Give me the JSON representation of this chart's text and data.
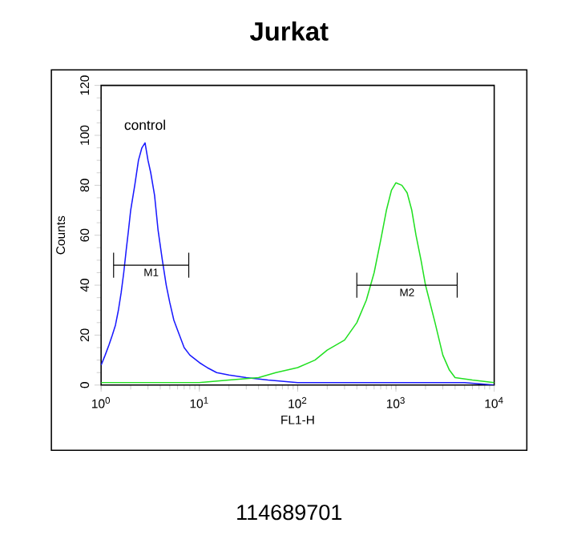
{
  "chart_data": {
    "type": "line",
    "title": "Jurkat",
    "xlabel": "FL1-H",
    "ylabel": "Counts",
    "log": "x",
    "xlim": [
      1,
      10000
    ],
    "xticks": [
      {
        "value": 1,
        "label": "10$^{0}$"
      },
      {
        "value": 10,
        "label": "10$^{1}$"
      },
      {
        "value": 100,
        "label": "10$^{2}$"
      },
      {
        "value": 1000,
        "label": "10$^{3}$"
      },
      {
        "value": 10000,
        "label": "10$^{4}$"
      }
    ],
    "ylim": [
      0,
      120
    ],
    "yticks": [
      0,
      20,
      40,
      60,
      80,
      100,
      120
    ],
    "series": [
      {
        "name": "control",
        "color": "#1a1aff",
        "x": [
          1.0,
          1.1,
          1.2,
          1.3,
          1.4,
          1.5,
          1.6,
          1.7,
          1.8,
          1.9,
          2.0,
          2.2,
          2.4,
          2.6,
          2.8,
          3.0,
          3.2,
          3.5,
          3.8,
          4.2,
          4.6,
          5.0,
          5.5,
          6,
          7,
          8,
          10,
          12,
          15,
          20,
          30,
          50,
          100,
          200,
          1000,
          5000,
          10000
        ],
        "values": [
          8,
          12,
          16,
          20,
          24,
          30,
          37,
          45,
          54,
          62,
          70,
          80,
          90,
          95,
          97,
          90,
          85,
          76,
          62,
          50,
          40,
          33,
          26,
          22,
          15,
          12,
          9,
          7,
          5,
          4,
          3,
          2,
          1,
          1,
          1,
          1,
          0
        ]
      },
      {
        "color": "#22e022",
        "x": [
          1,
          10,
          20,
          40,
          60,
          100,
          150,
          200,
          300,
          400,
          500,
          600,
          700,
          800,
          900,
          1000,
          1150,
          1300,
          1450,
          1600,
          1800,
          2000,
          2500,
          3000,
          3500,
          4000,
          6000,
          10000
        ],
        "values": [
          1,
          1,
          2,
          3,
          5,
          7,
          10,
          14,
          18,
          25,
          34,
          45,
          58,
          70,
          78,
          81,
          80,
          77,
          70,
          60,
          50,
          40,
          25,
          12,
          6,
          3,
          2,
          1
        ]
      },
      {
        "name": "M1",
        "type": "line",
        "marker": "none",
        "color": "#000000",
        "x": [
          1.34,
          7.8
        ],
        "values": [
          48,
          48
        ],
        "errors": [
          5,
          5
        ]
      },
      {
        "name": "M2",
        "type": "line",
        "marker": "none",
        "color": "#000000",
        "x": [
          400,
          4200
        ],
        "values": [
          40,
          40
        ],
        "errors": [
          5,
          5
        ]
      }
    ],
    "annotations": [
      "114689701"
    ]
  }
}
